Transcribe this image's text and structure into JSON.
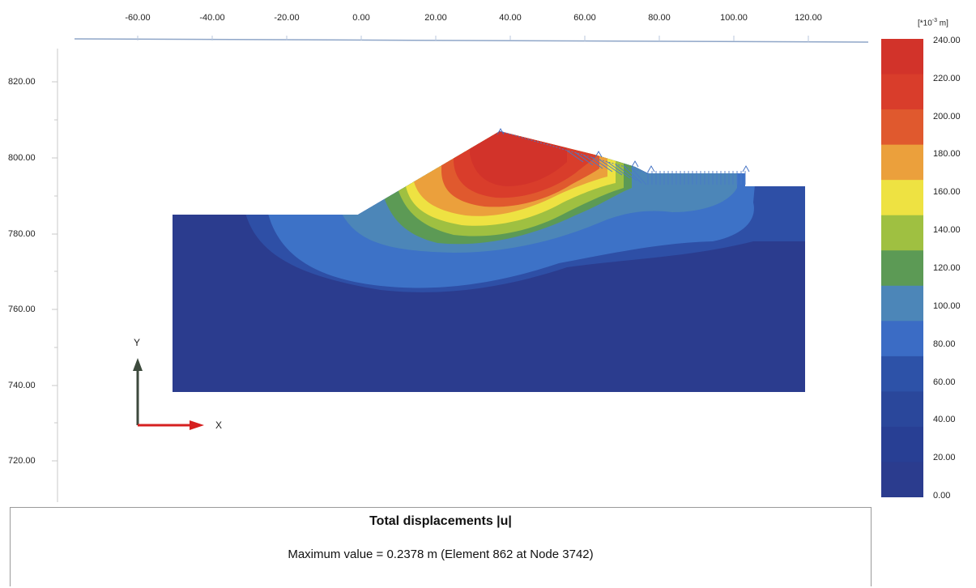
{
  "axes": {
    "x_ticks": [
      "-60.00",
      "-40.00",
      "-20.00",
      "0.00",
      "20.00",
      "40.00",
      "60.00",
      "80.00",
      "100.00",
      "120.00"
    ],
    "y_ticks": [
      "820.00",
      "800.00",
      "780.00",
      "760.00",
      "740.00",
      "720.00"
    ]
  },
  "triad": {
    "x_label": "X",
    "y_label": "Y",
    "x_color": "#d62020",
    "y_color": "#3d4a3d"
  },
  "legend": {
    "unit_prefix": "[*10",
    "unit_exp": "-3",
    "unit_suffix": " m]",
    "labels": [
      "240.00",
      "220.00",
      "200.00",
      "180.00",
      "160.00",
      "140.00",
      "120.00",
      "100.00",
      "80.00",
      "60.00",
      "40.00",
      "20.00",
      "0.00"
    ],
    "colors": [
      "#d2332a",
      "#d93d2b",
      "#e0592e",
      "#eba03c",
      "#eee242",
      "#9fc041",
      "#5c9a55",
      "#4c86b8",
      "#3b6cc5",
      "#2d52a8",
      "#2a479b",
      "#283f94",
      "#2b3c8e"
    ]
  },
  "info": {
    "title": "Total displacements |u|",
    "max_value": "Maximum value = 0.2378 m (Element 862 at Node 3742)"
  }
}
